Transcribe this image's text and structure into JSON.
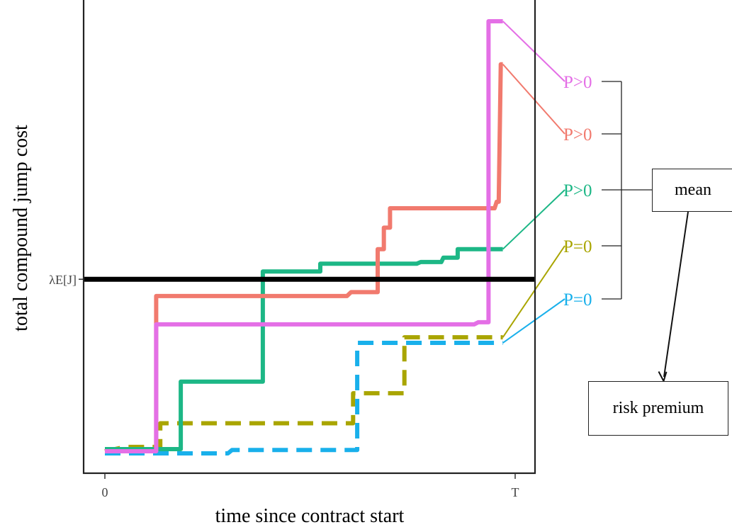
{
  "chart_data": {
    "type": "line",
    "xlabel": "time since contract start",
    "ylabel": "total compound jump cost",
    "x_ticks": [
      "0",
      "T"
    ],
    "y_reference": {
      "label": "λE[J]",
      "value": 0.4
    },
    "x_range": [
      0,
      1
    ],
    "y_range": [
      0,
      1
    ],
    "series": [
      {
        "label": "P>0",
        "color": "#e46fe6",
        "style": "solid",
        "points": [
          [
            0,
            0.0
          ],
          [
            0.125,
            0.0
          ],
          [
            0.125,
            0.295
          ],
          [
            0.26,
            0.295
          ],
          [
            0.6,
            0.295
          ],
          [
            0.9,
            0.295
          ],
          [
            0.91,
            0.3
          ],
          [
            0.935,
            0.3
          ],
          [
            0.935,
            1.0
          ],
          [
            0.97,
            1.0
          ]
        ]
      },
      {
        "label": "P>0",
        "color": "#f17a6e",
        "style": "solid",
        "points": [
          [
            0,
            0.0
          ],
          [
            0.125,
            0.0
          ],
          [
            0.125,
            0.361
          ],
          [
            0.3,
            0.361
          ],
          [
            0.59,
            0.361
          ],
          [
            0.6,
            0.37
          ],
          [
            0.665,
            0.37
          ],
          [
            0.665,
            0.47
          ],
          [
            0.68,
            0.47
          ],
          [
            0.68,
            0.52
          ],
          [
            0.695,
            0.52
          ],
          [
            0.695,
            0.565
          ],
          [
            0.95,
            0.565
          ],
          [
            0.955,
            0.58
          ],
          [
            0.96,
            0.58
          ],
          [
            0.965,
            0.9
          ],
          [
            0.97,
            0.9
          ]
        ]
      },
      {
        "label": "P>0",
        "color": "#1db786",
        "style": "solid",
        "points": [
          [
            0,
            0.005
          ],
          [
            0.185,
            0.005
          ],
          [
            0.185,
            0.162
          ],
          [
            0.385,
            0.162
          ],
          [
            0.385,
            0.418
          ],
          [
            0.525,
            0.418
          ],
          [
            0.525,
            0.436
          ],
          [
            0.76,
            0.436
          ],
          [
            0.77,
            0.44
          ],
          [
            0.82,
            0.44
          ],
          [
            0.825,
            0.45
          ],
          [
            0.86,
            0.45
          ],
          [
            0.86,
            0.47
          ],
          [
            0.97,
            0.47
          ]
        ]
      },
      {
        "label": "P=0",
        "color": "#a9a500",
        "style": "dashed",
        "points": [
          [
            0,
            0.0
          ],
          [
            0.05,
            0.01
          ],
          [
            0.135,
            0.01
          ],
          [
            0.135,
            0.065
          ],
          [
            0.605,
            0.065
          ],
          [
            0.605,
            0.135
          ],
          [
            0.73,
            0.135
          ],
          [
            0.73,
            0.265
          ],
          [
            0.97,
            0.265
          ]
        ]
      },
      {
        "label": "P=0",
        "color": "#19b0eb",
        "style": "dashed",
        "points": [
          [
            0,
            -0.005
          ],
          [
            0.3,
            -0.005
          ],
          [
            0.31,
            0.003
          ],
          [
            0.615,
            0.003
          ],
          [
            0.615,
            0.252
          ],
          [
            0.97,
            0.252
          ]
        ]
      }
    ],
    "annotation_boxes": [
      "mean",
      "risk premium"
    ]
  }
}
